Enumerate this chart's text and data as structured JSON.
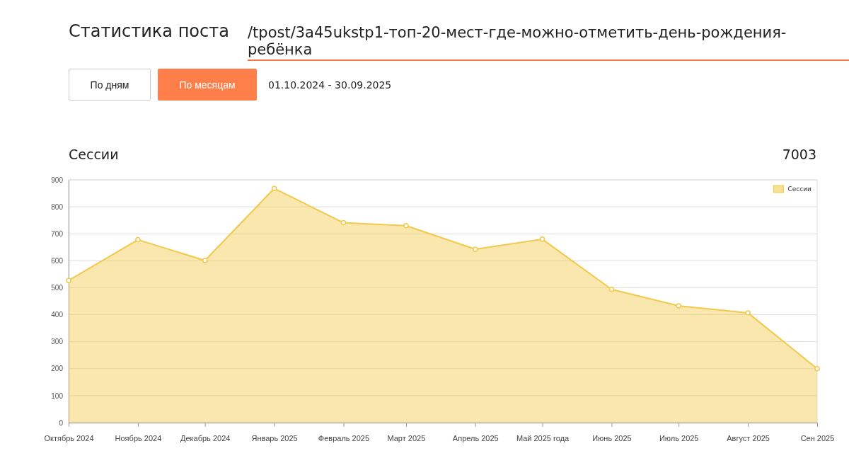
{
  "chart_data": {
    "type": "area",
    "title": "Статистика поста",
    "subtitle": "/tpost/3a45ukstp1-топ-20-мест-где-можно-отметить-день-рождения-ребёнка",
    "annotations": [
      "По дням",
      "По месяцам",
      "01.10.2024 - 30.09.2025",
      "Сессии",
      "7003"
    ],
    "x": [
      "2024-10",
      "2024-11",
      "2024-12",
      "2025-01",
      "2025-02",
      "2025-03",
      "2025-04",
      "2025-05",
      "2025-06",
      "2025-07",
      "2025-08",
      "2025-09"
    ],
    "series": [
      {
        "name": "Сессии",
        "color": "#f2c94c",
        "values": [
          527,
          678,
          601,
          868,
          741,
          730,
          643,
          680,
          494,
          433,
          407,
          200
        ]
      }
    ],
    "xlim": [
      "2024-10",
      "2025-09"
    ],
    "xticks": [
      {
        "value": "2024-10",
        "label": "Октябрь 2024"
      },
      {
        "value": "2024-11",
        "label": "Ноябрь 2024"
      },
      {
        "value": "2024-12",
        "label": "Декабрь 2024"
      },
      {
        "value": "2025-01",
        "label": "Январь 2025"
      },
      {
        "value": "2025-02",
        "label": "Февраль 2025"
      },
      {
        "value": "2025-03",
        "label": "Март 2025"
      },
      {
        "value": "2025-04",
        "label": "Апрель 2025"
      },
      {
        "value": "2025-05",
        "label": "Май 2025 года"
      },
      {
        "value": "2025-06",
        "label": "Июнь 2025"
      },
      {
        "value": "2025-07",
        "label": "Июль 2025"
      },
      {
        "value": "2025-08",
        "label": "Август 2025"
      },
      {
        "value": "2025-09",
        "label": "Сен 2025"
      }
    ],
    "ylim": [
      0,
      900
    ],
    "yticks": [
      0,
      100,
      200,
      300,
      400,
      500,
      600,
      700,
      800,
      900
    ],
    "grid": "y",
    "legend": "top right",
    "marker": "circle"
  }
}
